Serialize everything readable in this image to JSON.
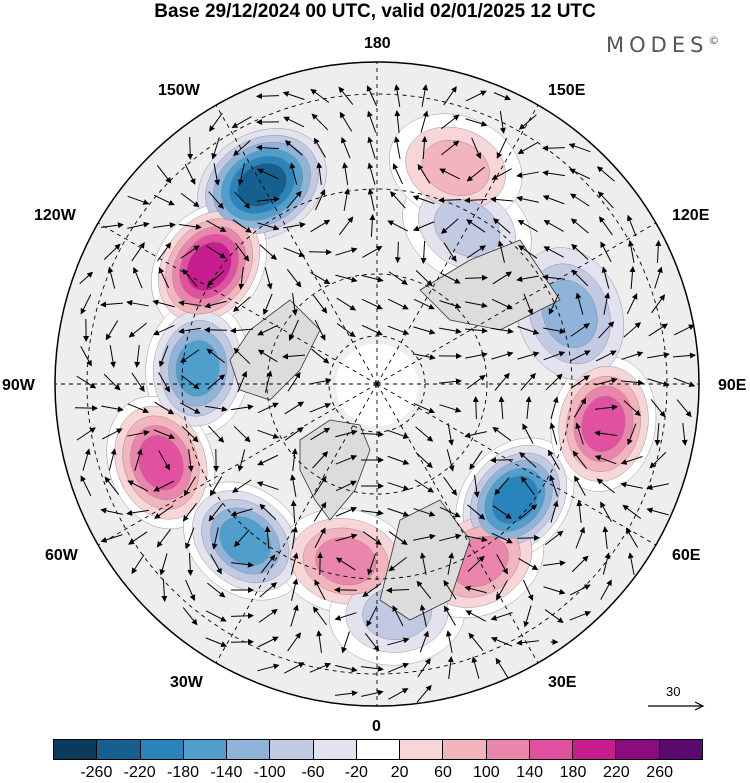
{
  "title": "Base 29/12/2024 00 UTC, valid 02/01/2025 12 UTC",
  "logo": "MODES",
  "logo_mark": "©",
  "map": {
    "projection": "north-polar-stereographic",
    "longitude_labels": {
      "top": "180",
      "top_right": "150E",
      "upper_right": "120E",
      "right": "90E",
      "lower_right": "60E",
      "bottom_right": "30E",
      "bottom": "0",
      "bottom_left": "30W",
      "lower_left": "60W",
      "left": "90W",
      "upper_left": "120W",
      "top_left": "150W"
    },
    "vector_reference": "30",
    "anomaly_centers": [
      {
        "lon": -150,
        "sign": "negative",
        "value": -220
      },
      {
        "lon": -125,
        "sign": "positive",
        "value": 220
      },
      {
        "lon": -95,
        "sign": "negative",
        "value": -160
      },
      {
        "lon": -70,
        "sign": "positive",
        "value": 160
      },
      {
        "lon": -40,
        "sign": "negative",
        "value": -160
      },
      {
        "lon": -10,
        "sign": "positive",
        "value": 120
      },
      {
        "lon": 5,
        "sign": "negative",
        "value": -80
      },
      {
        "lon": 30,
        "sign": "positive",
        "value": 140
      },
      {
        "lon": 50,
        "sign": "negative",
        "value": -200
      },
      {
        "lon": 80,
        "sign": "positive",
        "value": 180
      },
      {
        "lon": 110,
        "sign": "negative",
        "value": -100
      },
      {
        "lon": 150,
        "sign": "negative",
        "value": -80
      },
      {
        "lon": 160,
        "sign": "positive",
        "value": 100
      }
    ]
  },
  "colorbar": {
    "colors": [
      "#0c3a5c",
      "#15608f",
      "#2a84bc",
      "#4f9ecc",
      "#8fb3d9",
      "#c2c9e2",
      "#e3e3ef",
      "#ffffff",
      "#f8d6d8",
      "#f2b4bd",
      "#ea86ab",
      "#e2519f",
      "#c81d8f",
      "#8a0c7e",
      "#5a0a6e"
    ],
    "labels": [
      "-260",
      "-220",
      "-180",
      "-140",
      "-100",
      "-60",
      "-20",
      "20",
      "60",
      "100",
      "140",
      "180",
      "220",
      "260"
    ]
  }
}
